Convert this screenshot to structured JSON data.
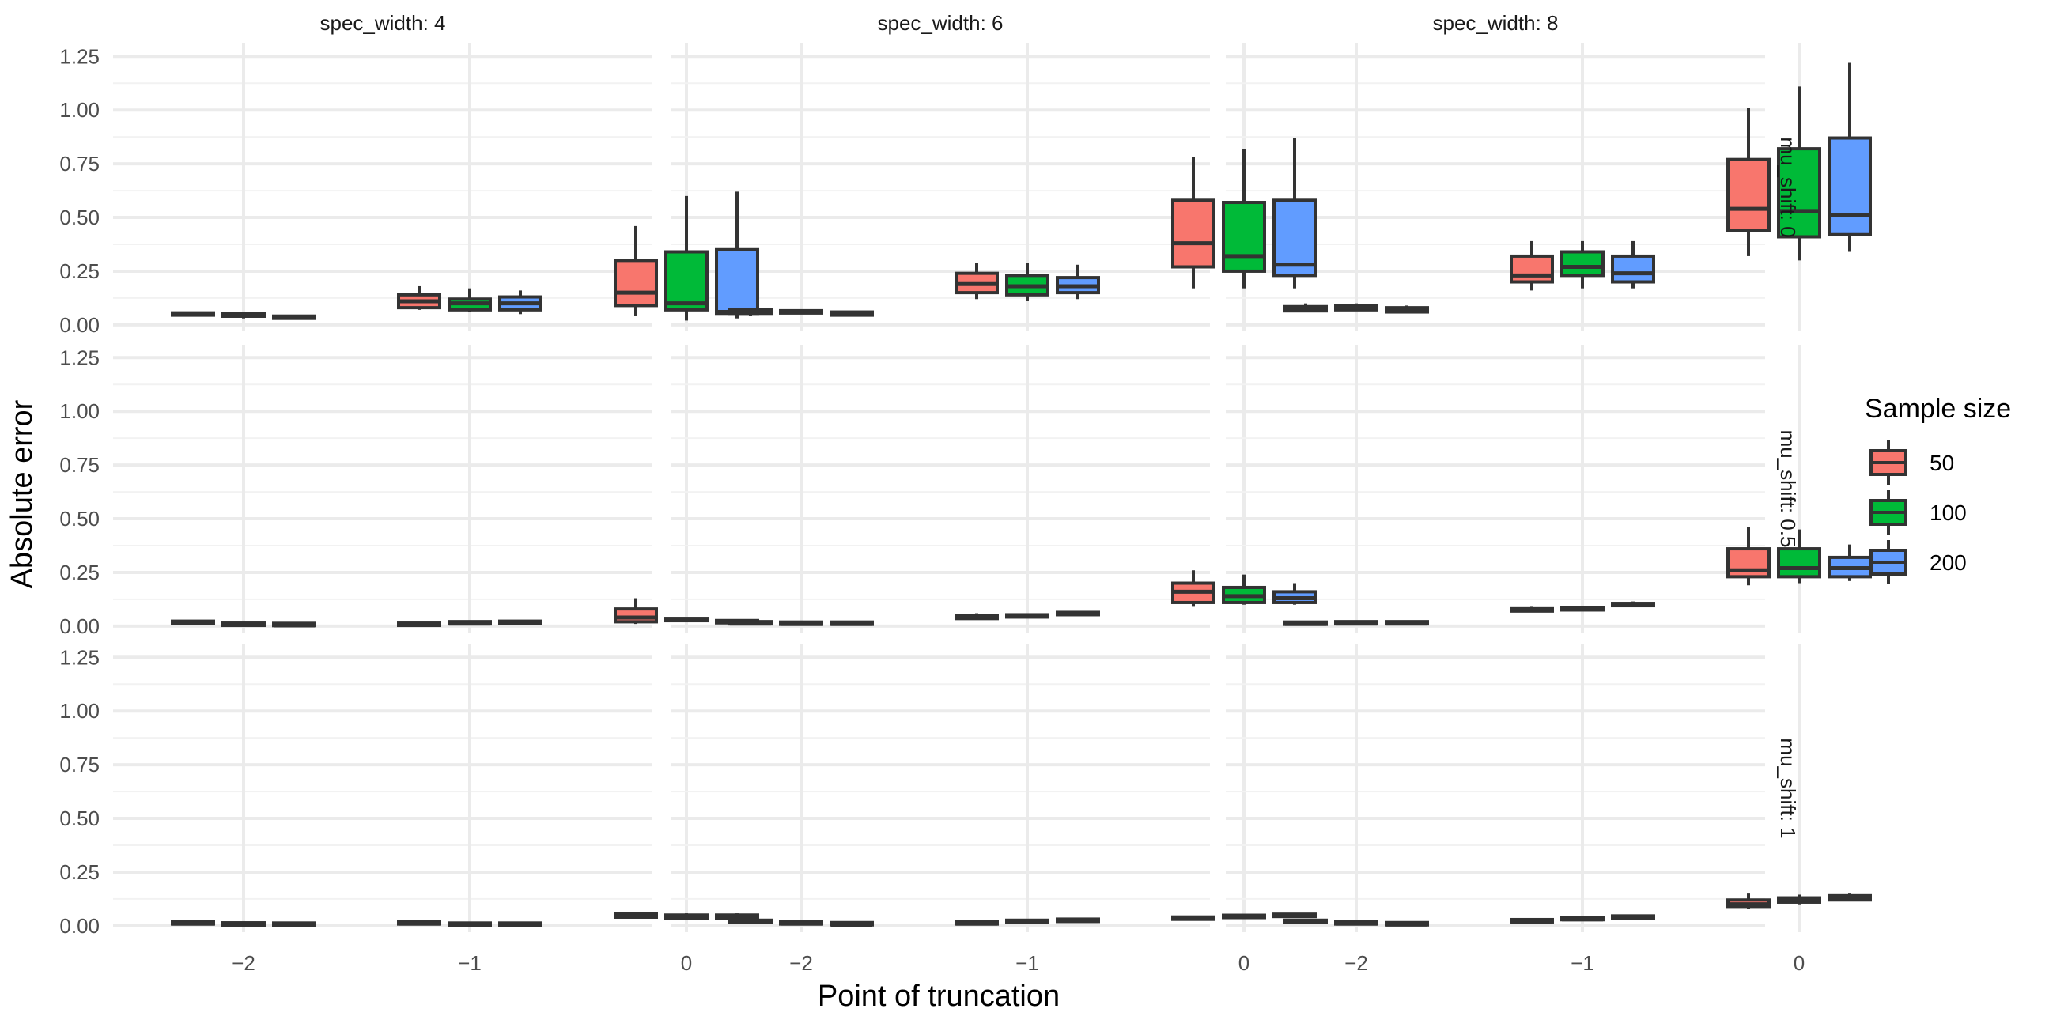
{
  "chart_data": {
    "type": "boxplot",
    "xlabel": "Point of truncation",
    "ylabel": "Absolute error",
    "x_categories": [
      "−2",
      "−1",
      "0"
    ],
    "y_ticks": [
      "0.00",
      "0.25",
      "0.50",
      "0.75",
      "1.00",
      "1.25"
    ],
    "ylim": [
      -0.03,
      1.31
    ],
    "col_facets": [
      "spec_width: 4",
      "spec_width: 6",
      "spec_width: 8"
    ],
    "row_facets": [
      "mu_shift: 0",
      "mu_shift: 0.5",
      "mu_shift: 1"
    ],
    "legend": {
      "title": "Sample size",
      "items": [
        {
          "label": "50",
          "color": "#F8766D"
        },
        {
          "label": "100",
          "color": "#00BA38"
        },
        {
          "label": "200",
          "color": "#619CFF"
        }
      ]
    },
    "box_format": "[lower_whisker, q1, median, q3, upper_whisker]",
    "panels": [
      [
        [
          [
            [
              0.04,
              0.045,
              0.05,
              0.055,
              0.06
            ],
            [
              0.03,
              0.04,
              0.045,
              0.05,
              0.055
            ],
            [
              0.025,
              0.03,
              0.035,
              0.04,
              0.045
            ]
          ],
          [
            [
              0.07,
              0.08,
              0.11,
              0.14,
              0.18
            ],
            [
              0.06,
              0.07,
              0.1,
              0.12,
              0.17
            ],
            [
              0.05,
              0.07,
              0.1,
              0.13,
              0.16
            ]
          ],
          [
            [
              0.04,
              0.09,
              0.15,
              0.3,
              0.46
            ],
            [
              0.02,
              0.07,
              0.1,
              0.34,
              0.6
            ],
            [
              0.03,
              0.05,
              0.06,
              0.35,
              0.62
            ]
          ]
        ],
        [
          [
            [
              0.04,
              0.05,
              0.06,
              0.07,
              0.08
            ],
            [
              0.05,
              0.055,
              0.06,
              0.065,
              0.07
            ],
            [
              0.04,
              0.045,
              0.05,
              0.06,
              0.065
            ]
          ],
          [
            [
              0.12,
              0.15,
              0.19,
              0.24,
              0.29
            ],
            [
              0.11,
              0.14,
              0.18,
              0.23,
              0.29
            ],
            [
              0.12,
              0.15,
              0.18,
              0.22,
              0.28
            ]
          ],
          [
            [
              0.17,
              0.27,
              0.38,
              0.58,
              0.78
            ],
            [
              0.17,
              0.25,
              0.32,
              0.57,
              0.82
            ],
            [
              0.17,
              0.23,
              0.28,
              0.58,
              0.87
            ]
          ]
        ],
        [
          [
            [
              0.06,
              0.065,
              0.075,
              0.085,
              0.1
            ],
            [
              0.065,
              0.07,
              0.08,
              0.09,
              0.1
            ],
            [
              0.055,
              0.06,
              0.07,
              0.08,
              0.09
            ]
          ],
          [
            [
              0.16,
              0.2,
              0.23,
              0.32,
              0.39
            ],
            [
              0.17,
              0.23,
              0.27,
              0.34,
              0.39
            ],
            [
              0.17,
              0.2,
              0.24,
              0.32,
              0.39
            ]
          ],
          [
            [
              0.32,
              0.44,
              0.54,
              0.77,
              1.01
            ],
            [
              0.3,
              0.41,
              0.53,
              0.82,
              1.11
            ],
            [
              0.34,
              0.42,
              0.51,
              0.87,
              1.22
            ]
          ]
        ]
      ],
      [
        [
          [
            [
              0.01,
              0.012,
              0.015,
              0.018,
              0.022
            ],
            [
              0.0,
              0.003,
              0.005,
              0.008,
              0.01
            ],
            [
              0.0,
              0.002,
              0.003,
              0.006,
              0.008
            ]
          ],
          [
            [
              0.0,
              0.003,
              0.006,
              0.008,
              0.012
            ],
            [
              0.008,
              0.01,
              0.012,
              0.015,
              0.018
            ],
            [
              0.01,
              0.012,
              0.015,
              0.018,
              0.02
            ]
          ],
          [
            [
              0.01,
              0.02,
              0.04,
              0.08,
              0.13
            ],
            [
              0.02,
              0.025,
              0.03,
              0.035,
              0.04
            ],
            [
              0.012,
              0.015,
              0.02,
              0.025,
              0.03
            ]
          ]
        ],
        [
          [
            [
              0.008,
              0.01,
              0.012,
              0.015,
              0.018
            ],
            [
              0.005,
              0.008,
              0.01,
              0.012,
              0.015
            ],
            [
              0.006,
              0.008,
              0.01,
              0.012,
              0.015
            ]
          ],
          [
            [
              0.03,
              0.035,
              0.045,
              0.05,
              0.06
            ],
            [
              0.04,
              0.042,
              0.045,
              0.048,
              0.05
            ],
            [
              0.05,
              0.053,
              0.056,
              0.06,
              0.065
            ]
          ],
          [
            [
              0.09,
              0.11,
              0.16,
              0.2,
              0.26
            ],
            [
              0.1,
              0.11,
              0.14,
              0.18,
              0.24
            ],
            [
              0.1,
              0.11,
              0.13,
              0.16,
              0.2
            ]
          ]
        ],
        [
          [
            [
              0.005,
              0.008,
              0.01,
              0.012,
              0.015
            ],
            [
              0.008,
              0.01,
              0.012,
              0.015,
              0.018
            ],
            [
              0.008,
              0.01,
              0.012,
              0.015,
              0.018
            ]
          ],
          [
            [
              0.065,
              0.07,
              0.075,
              0.08,
              0.09
            ],
            [
              0.07,
              0.075,
              0.08,
              0.085,
              0.095
            ],
            [
              0.09,
              0.095,
              0.1,
              0.105,
              0.115
            ]
          ],
          [
            [
              0.19,
              0.23,
              0.26,
              0.36,
              0.46
            ],
            [
              0.2,
              0.23,
              0.27,
              0.36,
              0.45
            ],
            [
              0.21,
              0.23,
              0.27,
              0.32,
              0.38
            ]
          ]
        ]
      ],
      [
        [
          [
            [
              0.005,
              0.008,
              0.01,
              0.012,
              0.015
            ],
            [
              0.0,
              0.003,
              0.004,
              0.006,
              0.008
            ],
            [
              0.0,
              0.002,
              0.003,
              0.005,
              0.007
            ]
          ],
          [
            [
              0.005,
              0.008,
              0.01,
              0.012,
              0.015
            ],
            [
              0.0,
              0.002,
              0.003,
              0.005,
              0.007
            ],
            [
              0.0,
              0.002,
              0.003,
              0.005,
              0.007
            ]
          ],
          [
            [
              0.035,
              0.04,
              0.045,
              0.055,
              0.06
            ],
            [
              0.03,
              0.035,
              0.04,
              0.05,
              0.058
            ],
            [
              0.03,
              0.035,
              0.04,
              0.05,
              0.058
            ]
          ]
        ],
        [
          [
            [
              0.012,
              0.015,
              0.018,
              0.02,
              0.023
            ],
            [
              0.005,
              0.008,
              0.01,
              0.012,
              0.015
            ],
            [
              0.002,
              0.004,
              0.005,
              0.007,
              0.009
            ]
          ],
          [
            [
              0.005,
              0.008,
              0.01,
              0.012,
              0.015
            ],
            [
              0.012,
              0.015,
              0.018,
              0.02,
              0.023
            ],
            [
              0.018,
              0.02,
              0.023,
              0.026,
              0.03
            ]
          ],
          [
            [
              0.025,
              0.03,
              0.035,
              0.04,
              0.045
            ],
            [
              0.035,
              0.038,
              0.04,
              0.043,
              0.046
            ],
            [
              0.04,
              0.043,
              0.046,
              0.05,
              0.055
            ]
          ]
        ],
        [
          [
            [
              0.012,
              0.015,
              0.018,
              0.022,
              0.025
            ],
            [
              0.005,
              0.008,
              0.01,
              0.013,
              0.016
            ],
            [
              0.002,
              0.004,
              0.006,
              0.008,
              0.01
            ]
          ],
          [
            [
              0.015,
              0.018,
              0.02,
              0.023,
              0.026
            ],
            [
              0.025,
              0.028,
              0.03,
              0.033,
              0.036
            ],
            [
              0.032,
              0.035,
              0.038,
              0.041,
              0.044
            ]
          ],
          [
            [
              0.08,
              0.09,
              0.1,
              0.12,
              0.15
            ],
            [
              0.1,
              0.11,
              0.12,
              0.13,
              0.145
            ],
            [
              0.115,
              0.12,
              0.13,
              0.14,
              0.15
            ]
          ]
        ]
      ]
    ]
  }
}
